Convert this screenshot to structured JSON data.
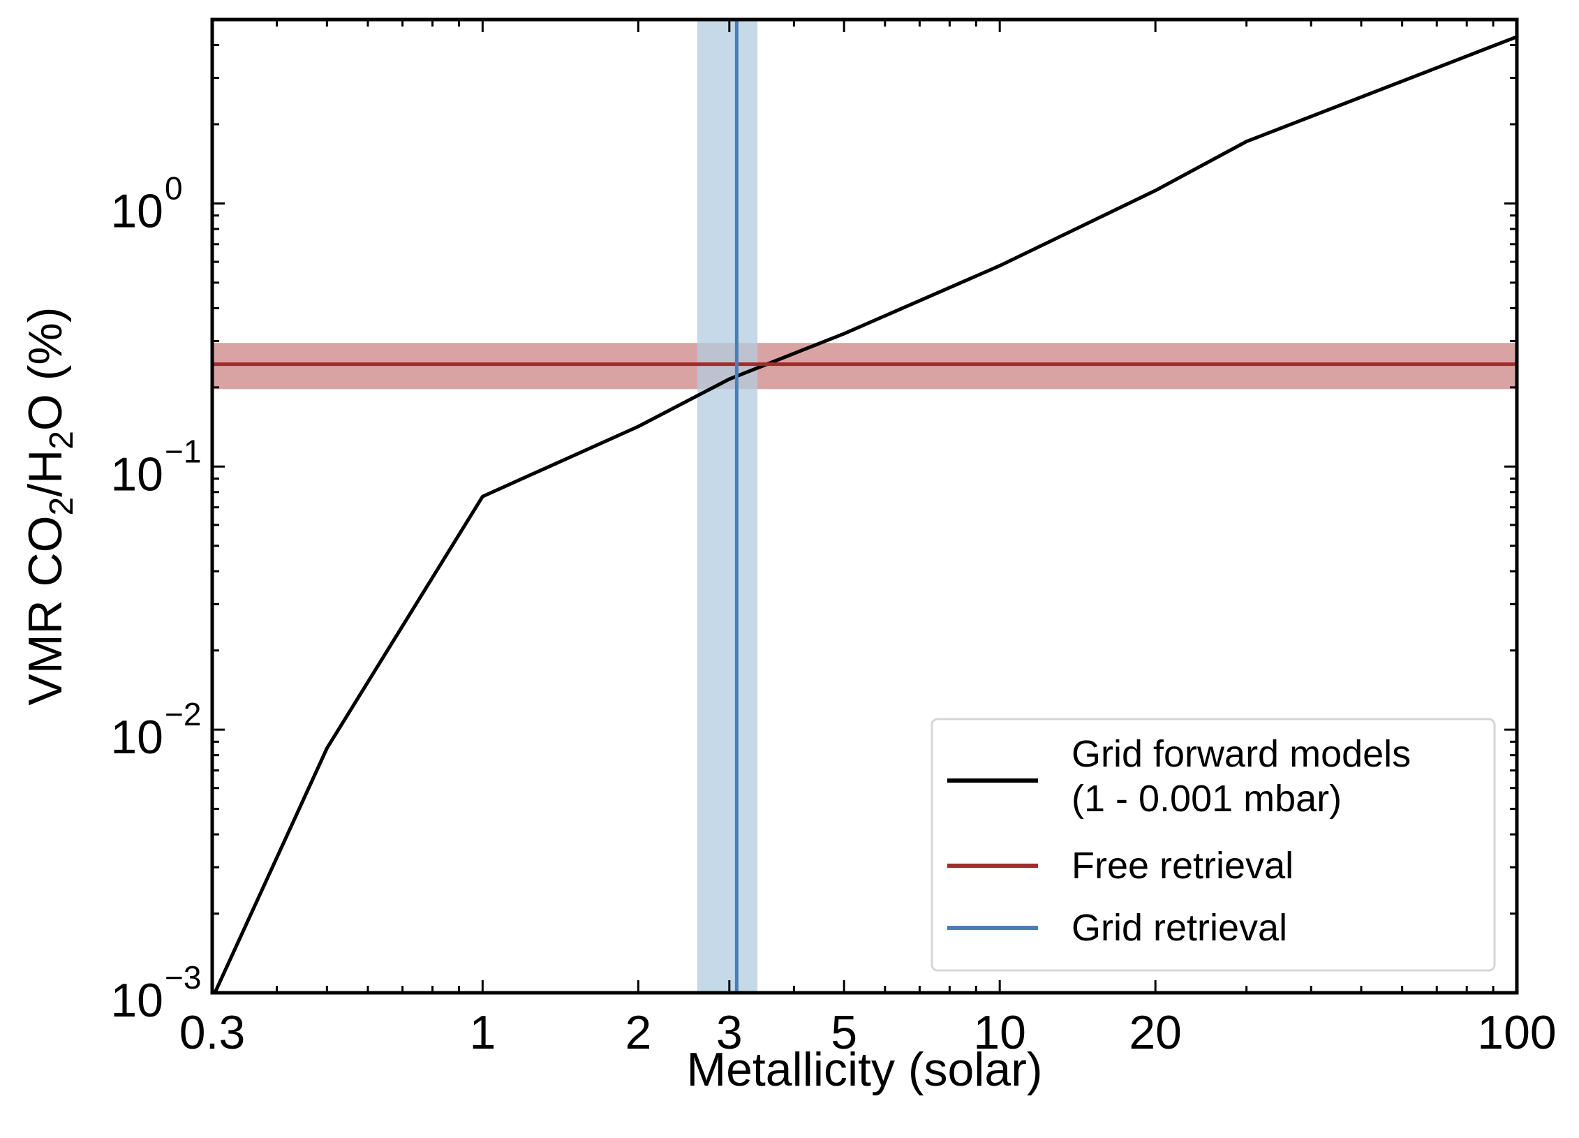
{
  "chart_data": {
    "type": "line",
    "xlabel": "Metallicity (solar)",
    "ylabel": {
      "parts": [
        "VMR CO",
        "2",
        "/H",
        "2",
        "O (%)"
      ],
      "subscripts": [
        false,
        true,
        false,
        true,
        false
      ]
    },
    "xscale": "log",
    "yscale": "log",
    "xlim": [
      0.3,
      100
    ],
    "ylim": [
      0.001,
      5
    ],
    "x_ticks": [
      {
        "value": 0.3,
        "label": "0.3"
      },
      {
        "value": 1,
        "label": "1"
      },
      {
        "value": 2,
        "label": "2"
      },
      {
        "value": 3,
        "label": "3"
      },
      {
        "value": 5,
        "label": "5"
      },
      {
        "value": 10,
        "label": "10"
      },
      {
        "value": 20,
        "label": "20"
      },
      {
        "value": 100,
        "label": "100"
      }
    ],
    "y_ticks": [
      {
        "value": 0.001,
        "base": "10",
        "exp": "−3"
      },
      {
        "value": 0.01,
        "base": "10",
        "exp": "−2"
      },
      {
        "value": 0.1,
        "base": "10",
        "exp": "−1"
      },
      {
        "value": 1,
        "base": "10",
        "exp": "0"
      }
    ],
    "grid": false,
    "legend_position": "lower-right",
    "series": [
      {
        "name_lines": [
          "Grid forward models",
          "(1 - 0.001 mbar)"
        ],
        "color": "#000000",
        "x": [
          0.3,
          0.5,
          1,
          2,
          3,
          5,
          10,
          20,
          30,
          100
        ],
        "y": [
          0.00095,
          0.0085,
          0.077,
          0.142,
          0.215,
          0.32,
          0.58,
          1.12,
          1.72,
          4.3
        ]
      },
      {
        "name_lines": [
          "Free retrieval"
        ],
        "color": "#a02c2c",
        "band_color": "#d9a3a3",
        "orientation": "horizontal",
        "value": 0.245,
        "band": [
          0.197,
          0.295
        ]
      },
      {
        "name_lines": [
          "Grid retrieval"
        ],
        "color": "#4a7fb5",
        "band_color": "#b3cce0",
        "orientation": "vertical",
        "value": 3.1,
        "band": [
          2.6,
          3.4
        ]
      }
    ]
  }
}
